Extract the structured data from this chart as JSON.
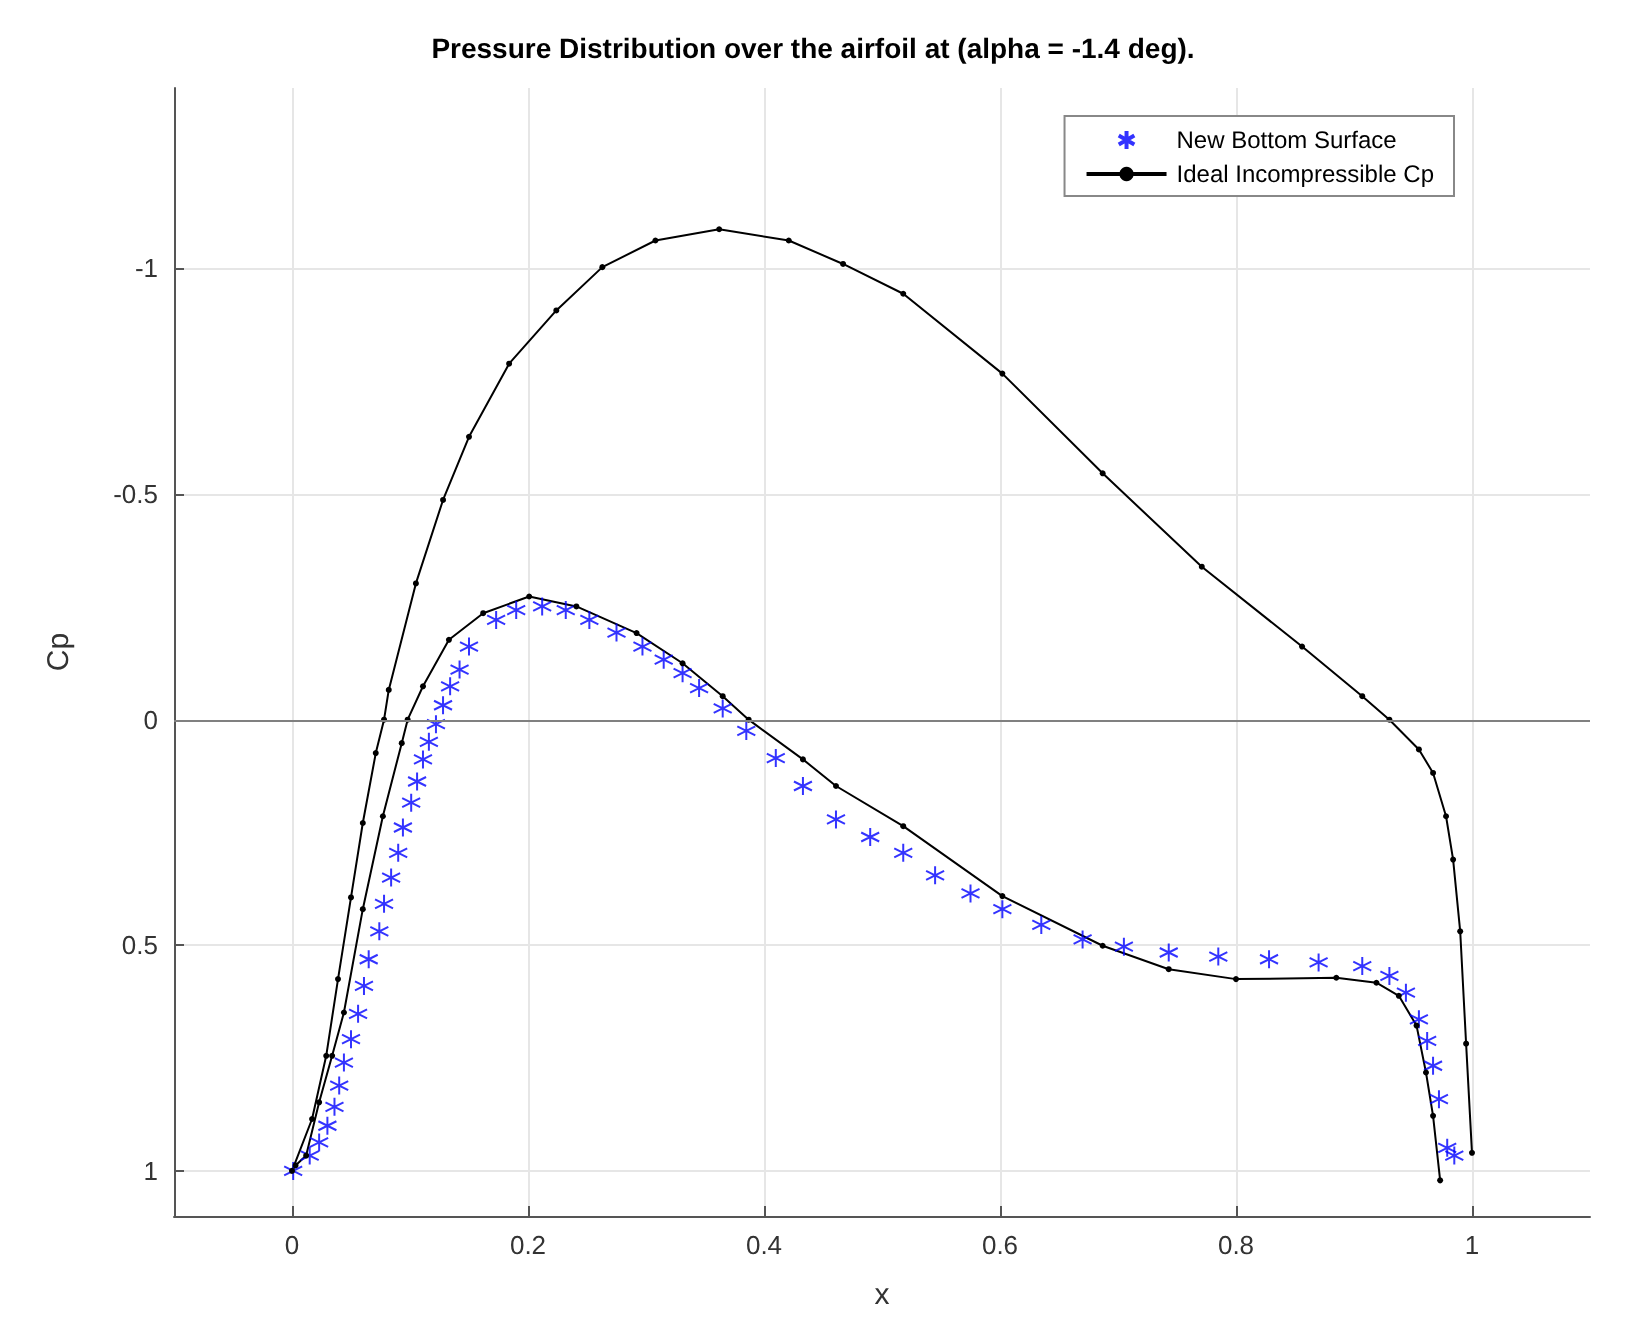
{
  "chart_data": {
    "type": "line",
    "title": "Pressure Distribution over the airfoil at (alpha = -1.4 deg).",
    "xlabel": "x",
    "ylabel": "Cp",
    "xlim": [
      -0.1,
      1.1
    ],
    "xticks": [
      0,
      0.2,
      0.4,
      0.6,
      0.8,
      1
    ],
    "ylim": [
      1.1,
      -1.4
    ],
    "yticks": [
      -1,
      -0.5,
      0,
      0.5,
      1
    ],
    "grid": true,
    "legend": "top right",
    "ref_lines": [
      {
        "axis": "y",
        "value": 0,
        "color": "#808080"
      }
    ],
    "series": [
      {
        "name": "New Bottom Surface",
        "type": "scatter",
        "marker": "cross",
        "color": "#0000ff",
        "x": [
          0.001,
          0.015,
          0.023,
          0.03,
          0.036,
          0.04,
          0.044,
          0.05,
          0.056,
          0.061,
          0.065,
          0.074,
          0.078,
          0.084,
          0.09,
          0.094,
          0.101,
          0.106,
          0.111,
          0.116,
          0.122,
          0.128,
          0.134,
          0.142,
          0.15,
          0.173,
          0.19,
          0.212,
          0.232,
          0.252,
          0.275,
          0.297,
          0.315,
          0.331,
          0.345,
          0.365,
          0.385,
          0.41,
          0.433,
          0.461,
          0.49,
          0.518,
          0.545,
          0.575,
          0.602,
          0.635,
          0.67,
          0.705,
          0.743,
          0.785,
          0.828,
          0.87,
          0.907,
          0.93,
          0.944,
          0.955,
          0.962,
          0.967,
          0.972,
          0.979,
          0.985
        ],
        "values": [
          1.0,
          0.966,
          0.937,
          0.9,
          0.858,
          0.811,
          0.76,
          0.708,
          0.652,
          0.59,
          0.531,
          0.469,
          0.408,
          0.35,
          0.295,
          0.239,
          0.184,
          0.137,
          0.088,
          0.049,
          0.01,
          -0.032,
          -0.074,
          -0.111,
          -0.162,
          -0.221,
          -0.243,
          -0.251,
          -0.243,
          -0.221,
          -0.193,
          -0.162,
          -0.133,
          -0.103,
          -0.07,
          -0.025,
          0.025,
          0.085,
          0.147,
          0.221,
          0.26,
          0.295,
          0.345,
          0.385,
          0.42,
          0.455,
          0.487,
          0.503,
          0.516,
          0.525,
          0.531,
          0.538,
          0.546,
          0.568,
          0.605,
          0.664,
          0.712,
          0.767,
          0.841,
          0.949,
          0.966
        ]
      },
      {
        "name": "Ideal Incompressible Cp",
        "marker": "circle",
        "line_style": "solid",
        "color": "#000000",
        "x": [
          1.0,
          0.995,
          0.99,
          0.984,
          0.978,
          0.967,
          0.955,
          0.93,
          0.907,
          0.856,
          0.771,
          0.687,
          0.602,
          0.518,
          0.467,
          0.421,
          0.362,
          0.308,
          0.263,
          0.224,
          0.184,
          0.15,
          0.128,
          0.105,
          0.082,
          0.078,
          0.071,
          0.06,
          0.05,
          0.039,
          0.029,
          0.017,
          0.0,
          0.003,
          0.012,
          0.023,
          0.034,
          0.044,
          0.06,
          0.077,
          0.093,
          0.098,
          0.111,
          0.133,
          0.162,
          0.201,
          0.241,
          0.292,
          0.331,
          0.365,
          0.387,
          0.433,
          0.461,
          0.518,
          0.602,
          0.687,
          0.743,
          0.8,
          0.885,
          0.919,
          0.938,
          0.953,
          0.961,
          0.967,
          0.973
        ],
        "values": [
          0.96,
          0.718,
          0.469,
          0.31,
          0.214,
          0.118,
          0.066,
          0.0,
          -0.052,
          -0.162,
          -0.339,
          -0.546,
          -0.767,
          -0.944,
          -1.01,
          -1.062,
          -1.087,
          -1.062,
          -1.003,
          -0.907,
          -0.789,
          -0.627,
          -0.487,
          -0.302,
          -0.066,
          0.0,
          0.074,
          0.229,
          0.394,
          0.575,
          0.745,
          0.885,
          1.0,
          0.988,
          0.966,
          0.848,
          0.745,
          0.649,
          0.42,
          0.214,
          0.052,
          0.0,
          -0.074,
          -0.177,
          -0.236,
          -0.273,
          -0.251,
          -0.192,
          -0.125,
          -0.052,
          0.0,
          0.088,
          0.147,
          0.236,
          0.391,
          0.501,
          0.553,
          0.575,
          0.572,
          0.583,
          0.612,
          0.678,
          0.782,
          0.878,
          1.021
        ]
      }
    ]
  }
}
